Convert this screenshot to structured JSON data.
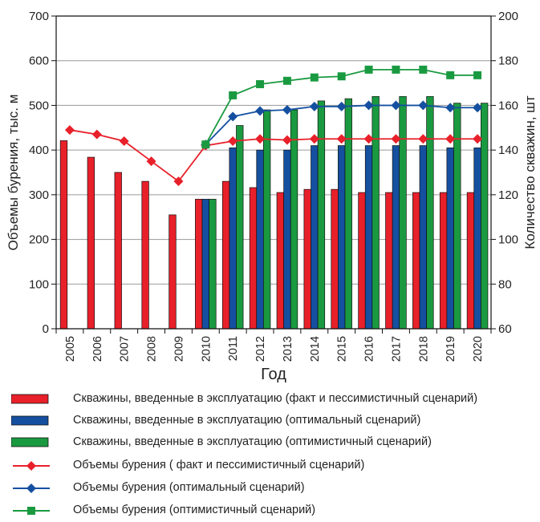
{
  "chart_data": {
    "type": "bar",
    "xlabel": "Год",
    "ylabel_left": "Объемы бурения, тыс. м",
    "ylabel_right": "Количество скважин, шт",
    "ylim_left": [
      0,
      700
    ],
    "yticks_left": [
      0,
      100,
      200,
      300,
      400,
      500,
      600,
      700
    ],
    "ylim_right": [
      60,
      200
    ],
    "yticks_right": [
      60,
      80,
      100,
      120,
      140,
      160,
      180,
      200
    ],
    "grid": "horizontal",
    "legend_position": "bottom",
    "categories": [
      "2005",
      "2006",
      "2007",
      "2008",
      "2009",
      "2010",
      "2011",
      "2012",
      "2013",
      "2014",
      "2015",
      "2016",
      "2017",
      "2018",
      "2019",
      "2020"
    ],
    "series": [
      {
        "name": "Скважины, введенные в эксплуатацию (факт и пессимистичный сценарий)",
        "kind": "bar",
        "axis": "left",
        "color": "#e8202a",
        "values": [
          421,
          384,
          350,
          330,
          255,
          290,
          330,
          316,
          305,
          312,
          312,
          305,
          305,
          305,
          305,
          305
        ]
      },
      {
        "name": "Скважины, введенные в эксплуатацию (оптимальный сценарий)",
        "kind": "bar",
        "axis": "left",
        "color": "#1550a0",
        "values": [
          null,
          null,
          null,
          null,
          null,
          290,
          405,
          400,
          400,
          410,
          410,
          410,
          410,
          410,
          405,
          405
        ]
      },
      {
        "name": "Скважины, введенные в эксплуатацию (оптимистичный сценарий)",
        "kind": "bar",
        "axis": "left",
        "color": "#1a9a40",
        "values": [
          null,
          null,
          null,
          null,
          null,
          290,
          455,
          490,
          490,
          510,
          515,
          520,
          520,
          520,
          505,
          505
        ]
      },
      {
        "name": "Объемы бурения ( факт и пессимистичный сценарий)",
        "kind": "line",
        "axis": "right",
        "color": "#e8202a",
        "marker": "diamond",
        "values": [
          149,
          147,
          144,
          135,
          126,
          142,
          144,
          145,
          144.5,
          145,
          145,
          145,
          145,
          145,
          145,
          145
        ]
      },
      {
        "name": "Объемы бурения (оптимальный сценарий)",
        "kind": "line",
        "axis": "right",
        "color": "#1550a0",
        "marker": "diamond",
        "values": [
          null,
          null,
          null,
          null,
          null,
          142.5,
          155,
          157.5,
          158,
          159.5,
          159.5,
          160,
          160,
          160,
          159,
          159
        ]
      },
      {
        "name": "Объемы бурения (оптимистичный сценарий)",
        "kind": "line",
        "axis": "right",
        "color": "#1a9a40",
        "marker": "square",
        "values": [
          null,
          null,
          null,
          null,
          null,
          142.5,
          164.5,
          169.5,
          171,
          172.5,
          173,
          176,
          176,
          176,
          173.5,
          173.5
        ]
      }
    ]
  }
}
